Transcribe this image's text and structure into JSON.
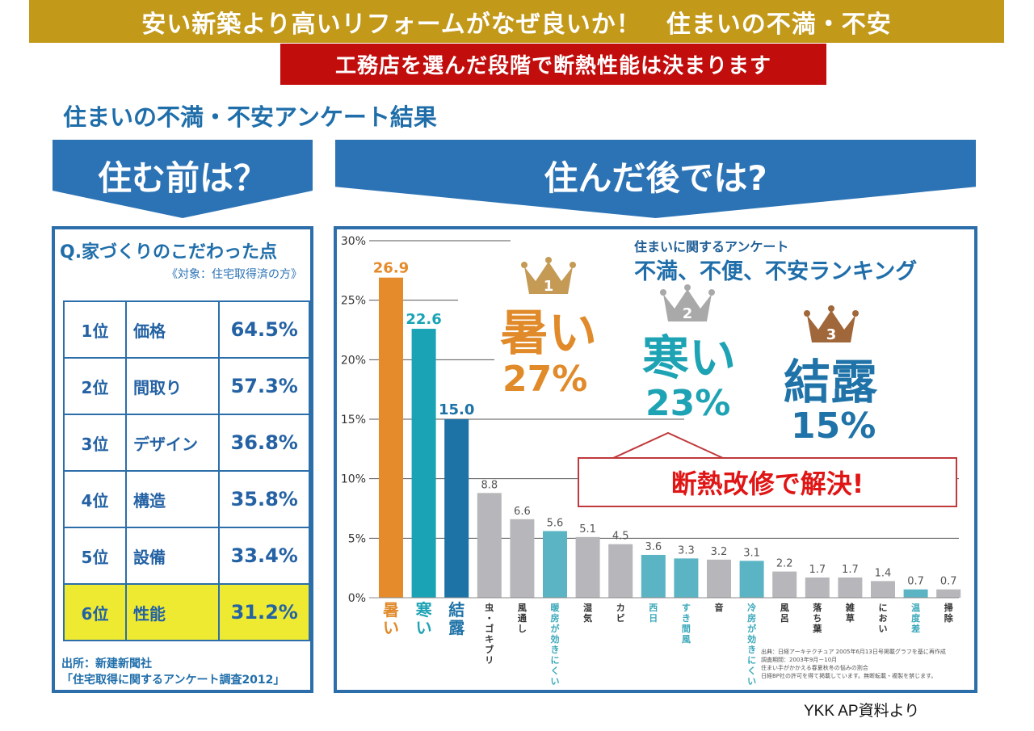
{
  "header": {
    "title": "安い新築より高いリフォームがなぜ良いか！　住まいの不満・不安",
    "subtitle": "工務店を選んだ段階で断熱性能は決まります",
    "section_title": "住まいの不満・不安アンケート結果"
  },
  "before": {
    "header": "住む前は？",
    "question": "Q.家づくりのこだわった点",
    "target": "《対象：住宅取得済の方》",
    "rows": [
      {
        "rank": "1位",
        "item": "価格",
        "value": "64.5%"
      },
      {
        "rank": "2位",
        "item": "間取り",
        "value": "57.3%"
      },
      {
        "rank": "3位",
        "item": "デザイン",
        "value": "36.8%"
      },
      {
        "rank": "4位",
        "item": "構造",
        "value": "35.8%"
      },
      {
        "rank": "5位",
        "item": "設備",
        "value": "33.4%"
      },
      {
        "rank": "6位",
        "item": "性能",
        "value": "31.2%",
        "highlight": true
      }
    ],
    "source_line1": "出所：新建新聞社",
    "source_line2": "「住宅取得に関するアンケート調査2012」"
  },
  "after": {
    "header": "住んだ後では?",
    "survey_subtitle": "住まいに関するアンケート",
    "survey_title": "不満、不便、不安ランキング",
    "top3": [
      {
        "rank": "1",
        "word": "暑い",
        "pct": "27%",
        "color": "#e08a2a",
        "crown_color": "#c49a55"
      },
      {
        "rank": "2",
        "word": "寒い",
        "pct": "23%",
        "color": "#1ea3b5",
        "crown_color": "#a9a9a9"
      },
      {
        "rank": "3",
        "word": "結露",
        "pct": "15%",
        "color": "#1f73a8",
        "crown_color": "#a0673a"
      }
    ],
    "callout": "断熱改修で解決!",
    "source_lines": [
      "出典：日経アーキテクチュア 2005年6月13日号掲載グラフを基に再作成",
      "調査期間：2003年9月－10月",
      "住まい手がかかえる春夏秋冬の悩みの割合",
      "日経BP社の許可を得て掲載しています。無断転載・複製を禁じます。"
    ]
  },
  "credit": "YKK AP資料より",
  "chart_data": {
    "type": "bar",
    "title": "不満、不便、不安ランキング",
    "xlabel": "",
    "ylabel": "",
    "ylim": [
      0,
      30
    ],
    "yticks": [
      "0%",
      "5%",
      "10%",
      "15%",
      "20%",
      "25%",
      "30%"
    ],
    "ytick_values": [
      0,
      5,
      10,
      15,
      20,
      25,
      30
    ],
    "grid": true,
    "categories": [
      "暑い",
      "寒い",
      "結露",
      "虫・ゴキブリ",
      "風通し",
      "暖房が効きにくい",
      "湿気",
      "カビ",
      "西日",
      "すき間風",
      "音",
      "冷房が効きにくい",
      "風呂",
      "落ち葉",
      "雑草",
      "におい",
      "温度差",
      "掃除"
    ],
    "values": [
      26.9,
      22.6,
      15.0,
      8.8,
      6.6,
      5.6,
      5.1,
      4.5,
      3.6,
      3.3,
      3.2,
      3.1,
      2.2,
      1.7,
      1.7,
      1.4,
      0.7,
      0.7
    ],
    "value_labels": [
      "26.9",
      "22.6",
      "15.0",
      "8.8",
      "6.6",
      "5.6",
      "5.1",
      "4.5",
      "3.6",
      "3.3",
      "3.2",
      "3.1",
      "2.2",
      "1.7",
      "1.7",
      "1.4",
      "0.7",
      "0.7"
    ],
    "bar_colors": [
      "#e58b2b",
      "#1aa3b5",
      "#1d72a6",
      "#b7b7bb",
      "#b7b7bb",
      "#5ab4c4",
      "#b7b7bb",
      "#b7b7bb",
      "#5ab4c4",
      "#5ab4c4",
      "#b7b7bb",
      "#5ab4c4",
      "#b7b7bb",
      "#b7b7bb",
      "#b7b7bb",
      "#b7b7bb",
      "#5ab4c4",
      "#b7b7bb"
    ],
    "label_colors": [
      "#e08a2a",
      "#1ea3b5",
      "#1f73a8",
      "#333333",
      "#333333",
      "#3aa8ba",
      "#333333",
      "#333333",
      "#3aa8ba",
      "#3aa8ba",
      "#333333",
      "#3aa8ba",
      "#333333",
      "#333333",
      "#333333",
      "#333333",
      "#3aa8ba",
      "#333333"
    ]
  }
}
